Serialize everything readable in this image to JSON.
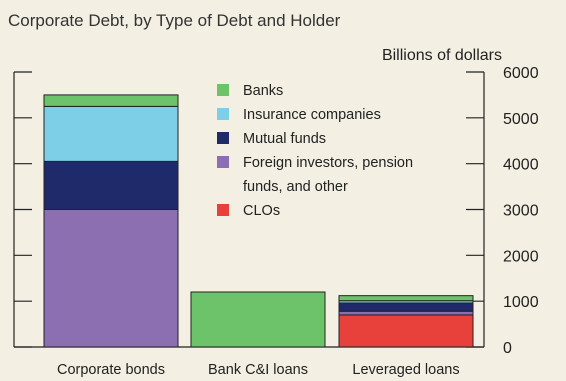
{
  "chart_data": {
    "type": "bar",
    "stacked": true,
    "title": "Corporate Debt, by Type of Debt and Holder",
    "ylabel": "Billions of dollars",
    "ylim": [
      0,
      6000
    ],
    "yticks": [
      0,
      1000,
      2000,
      3000,
      4000,
      5000,
      6000
    ],
    "y_axis_side": "right",
    "grid": false,
    "legend_position": "top-center",
    "categories": [
      "Corporate bonds",
      "Bank C&I loans",
      "Leveraged loans"
    ],
    "series": [
      {
        "name": "CLOs",
        "color": "#e8413c",
        "values": [
          0,
          0,
          700
        ]
      },
      {
        "name": "Foreign investors, pension funds, and other",
        "color": "#8c6fb1",
        "values": [
          3000,
          0,
          80
        ]
      },
      {
        "name": "Mutual funds",
        "color": "#1f2a6b",
        "values": [
          1050,
          0,
          180
        ]
      },
      {
        "name": "Insurance companies",
        "color": "#7dcfe8",
        "values": [
          1200,
          0,
          50
        ]
      },
      {
        "name": "Banks",
        "color": "#6cc36a",
        "values": [
          250,
          1200,
          110
        ]
      }
    ],
    "legend_order": [
      "Banks",
      "Insurance companies",
      "Mutual funds",
      "Foreign investors, pension funds, and other",
      "CLOs"
    ],
    "legend_lines": {
      "Foreign investors, pension funds, and other": [
        "Foreign investors, pension",
        "funds, and other"
      ]
    }
  }
}
